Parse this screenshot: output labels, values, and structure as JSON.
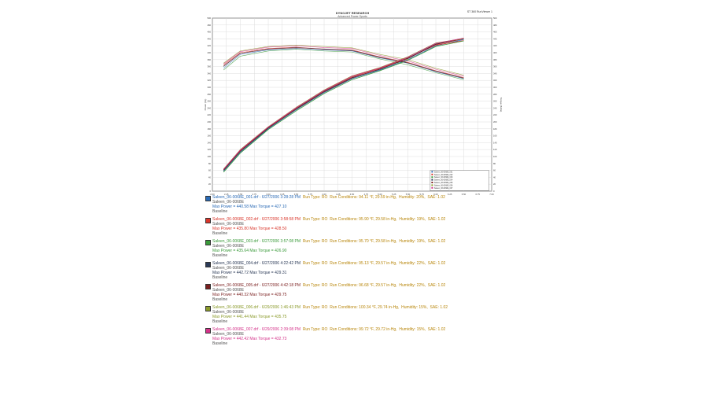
{
  "header": {
    "title": "DYNOJET RESEARCH",
    "subtitle": "Advanced Power Sports",
    "right": "ST 360 RunViewer 1"
  },
  "runs": [
    {
      "color": "#2a6ab5",
      "file": "Saleen_06-0068E_001.drf - 6/27/2006 3:28:28 PM",
      "run_type": "Run Type: RO",
      "conditions": "Run Conditions: 94.11 °F, 29.59 in-Hg,",
      "humidity": "Humidity: 20%,",
      "sae": "SAE: 1.02",
      "vehicle": "Saleen_06-0068E",
      "maxes": "Max Power = 440.58   Max Torque = 427.10",
      "note": "Baseline"
    },
    {
      "color": "#d9362b",
      "file": "Saleen_06-0068E_002.drf - 6/27/2006 3:58:58 PM",
      "run_type": "Run Type: RO",
      "conditions": "Run Conditions: 95.90 °F, 29.58 in-Hg,",
      "humidity": "Humidity: 19%,",
      "sae": "SAE: 1.02",
      "vehicle": "Saleen_06-0068E",
      "maxes": "Max Power = 435.80   Max Torque = 428.50",
      "note": "Baseline"
    },
    {
      "color": "#3a9a3a",
      "file": "Saleen_06-0068E_003.drf - 6/27/2006 3:57:08 PM",
      "run_type": "Run Type: RO",
      "conditions": "Run Conditions: 95.70 °F, 29.58 in-Hg,",
      "humidity": "Humidity: 19%,",
      "sae": "SAE: 1.02",
      "vehicle": "Saleen_06-0068E",
      "maxes": "Max Power = 435.64   Max Torque = 426.90",
      "note": "Baseline"
    },
    {
      "color": "#2b3a57",
      "file": "Saleen_06-0068E_004.drf - 6/27/2006 4:22:42 PM",
      "run_type": "Run Type: RO",
      "conditions": "Run Conditions: 95.13 °F, 29.57 in-Hg,",
      "humidity": "Humidity: 22%,",
      "sae": "SAE: 1.02",
      "vehicle": "Saleen_06-0068E",
      "maxes": "Max Power = 442.72   Max Torque = 429.31",
      "note": "Baseline"
    },
    {
      "color": "#7a1f1f",
      "file": "Saleen_06-0068E_005.drf - 6/27/2006 4:42:18 PM",
      "run_type": "Run Type: RO",
      "conditions": "Run Conditions: 96.68 °F, 29.57 in-Hg,",
      "humidity": "Humidity: 22%,",
      "sae": "SAE: 1.02",
      "vehicle": "Saleen_06-0068E",
      "maxes": "Max Power = 440.32   Max Torque = 429.75",
      "note": "Baseline"
    },
    {
      "color": "#8a9a2a",
      "file": "Saleen_06-0068E_006.drf - 6/29/2006 1:46:43 PM",
      "run_type": "Run Type: RO",
      "conditions": "Run Conditions: 100.34 °F, 29.74 in-Hg,",
      "humidity": "Humidity: 15%,",
      "sae": "SAE: 1.02",
      "vehicle": "Saleen_06-0068E",
      "maxes": "Max Power = 441.44   Max Torque = 435.75",
      "note": "Baseline"
    },
    {
      "color": "#d4338a",
      "file": "Saleen_06-0068E_007.drf - 6/29/2006 2:39:08 PM",
      "run_type": "Run Type: RO",
      "conditions": "Run Conditions: 99.72 °F, 29.72 in-Hg,",
      "humidity": "Humidity: 15%,",
      "sae": "SAE: 1.02",
      "vehicle": "Saleen_06-0068E",
      "maxes": "Max Power = 442.42   Max Torque = 432.73",
      "note": "Baseline"
    }
  ],
  "chart_data": {
    "type": "line",
    "title": "DYNOJET RESEARCH",
    "subtitle": "Advanced Power Sports",
    "xlabel": "Engine Speed (RPM x 1000)",
    "ylabel": "Power (hp)",
    "y2label": "Torque (ft-lbs)",
    "xlim": [
      2.0,
      7.0
    ],
    "ylim": [
      0,
      500
    ],
    "y2lim": [
      0,
      500
    ],
    "x_ticks": [
      "2.00",
      "2.25",
      "2.50",
      "2.75",
      "3.00",
      "3.25",
      "3.50",
      "3.75",
      "4.00",
      "4.25",
      "4.50",
      "4.75",
      "5.00",
      "5.25",
      "5.50",
      "5.75",
      "6.00",
      "6.25",
      "6.50",
      "6.75",
      "7.00"
    ],
    "y_ticks": [
      "0",
      "20",
      "40",
      "60",
      "80",
      "100",
      "120",
      "140",
      "160",
      "180",
      "200",
      "220",
      "240",
      "260",
      "280",
      "300",
      "320",
      "340",
      "360",
      "380",
      "400",
      "420",
      "440",
      "460",
      "480",
      "500"
    ],
    "grid": true,
    "x": [
      2.2,
      2.5,
      3.0,
      3.5,
      4.0,
      4.5,
      5.0,
      5.5,
      6.0,
      6.5
    ],
    "series": [
      {
        "name": "Saleen_06-0068E_001",
        "color": "#2a6ab5",
        "power": [
          58,
          112,
          180,
          235,
          285,
          325,
          350,
          380,
          420,
          438
        ],
        "torque": [
          355,
          395,
          408,
          412,
          408,
          405,
          385,
          370,
          345,
          325
        ]
      },
      {
        "name": "Saleen_06-0068E_002",
        "color": "#d9362b",
        "power": [
          62,
          118,
          184,
          240,
          290,
          330,
          355,
          385,
          422,
          435
        ],
        "torque": [
          365,
          400,
          412,
          416,
          410,
          408,
          388,
          372,
          348,
          328
        ]
      },
      {
        "name": "Saleen_06-0068E_003",
        "color": "#3a9a3a",
        "power": [
          55,
          110,
          178,
          232,
          282,
          322,
          348,
          378,
          418,
          434
        ],
        "torque": [
          350,
          390,
          405,
          410,
          405,
          402,
          382,
          365,
          342,
          322
        ]
      },
      {
        "name": "Saleen_06-0068E_004",
        "color": "#2b3a57",
        "power": [
          60,
          115,
          182,
          238,
          288,
          328,
          352,
          384,
          425,
          442
        ],
        "torque": [
          360,
          398,
          410,
          415,
          410,
          406,
          386,
          370,
          346,
          326
        ]
      },
      {
        "name": "Saleen_06-0068E_005",
        "color": "#7a1f1f",
        "power": [
          61,
          116,
          183,
          237,
          287,
          327,
          353,
          383,
          424,
          440
        ],
        "torque": [
          362,
          398,
          411,
          414,
          411,
          407,
          387,
          371,
          347,
          327
        ]
      },
      {
        "name": "Saleen_06-0068E_006",
        "color": "#8a9a2a",
        "power": [
          64,
          120,
          186,
          242,
          292,
          333,
          357,
          388,
          428,
          441
        ],
        "torque": [
          370,
          405,
          418,
          422,
          418,
          414,
          395,
          380,
          355,
          335
        ]
      },
      {
        "name": "Saleen_06-0068E_007",
        "color": "#d4338a",
        "power": [
          63,
          119,
          185,
          241,
          291,
          332,
          356,
          387,
          427,
          442
        ],
        "torque": [
          368,
          403,
          416,
          420,
          415,
          412,
          392,
          376,
          352,
          332
        ]
      }
    ],
    "legend_position": "bottom-right"
  }
}
